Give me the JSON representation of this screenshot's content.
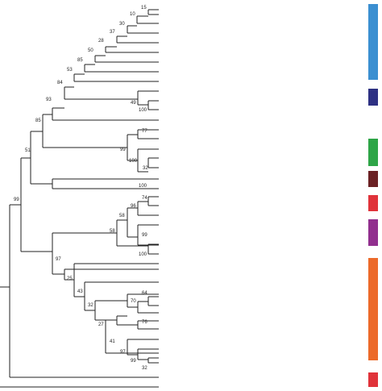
{
  "bootstrap_values": {
    "n15": "15",
    "n10": "10",
    "n30": "30",
    "n37": "37",
    "n28": "28",
    "n50": "50",
    "n85a": "85",
    "n53": "53",
    "n84": "84",
    "n49": "49",
    "n100a": "100",
    "n93": "93",
    "n85b": "85",
    "n77": "77",
    "n99a": "99",
    "n100b": "100",
    "n32a": "32",
    "n51": "51",
    "n100c": "100",
    "n99b": "99",
    "n74": "74",
    "n96": "96",
    "n58a": "58",
    "n99c": "99",
    "n100d": "100",
    "n58b": "58",
    "n97a": "97",
    "n25": "25",
    "n43": "43",
    "n64": "64",
    "n70": "70",
    "n32b": "32",
    "n27": "27",
    "n76": "76",
    "n41": "41",
    "n97b": "97",
    "n99d": "99",
    "n32c": "32"
  },
  "clade_bars": [
    {
      "name": "clade-bar-blue",
      "color": "#3b8fd1"
    },
    {
      "name": "clade-bar-navy",
      "color": "#2e3183"
    },
    {
      "name": "clade-bar-green",
      "color": "#2ea547"
    },
    {
      "name": "clade-bar-maroon",
      "color": "#6b2124"
    },
    {
      "name": "clade-bar-red-1",
      "color": "#e0333a"
    },
    {
      "name": "clade-bar-purple",
      "color": "#912f8e"
    },
    {
      "name": "clade-bar-orange",
      "color": "#ec6a2a"
    },
    {
      "name": "clade-bar-red-2",
      "color": "#e0333a"
    }
  ]
}
